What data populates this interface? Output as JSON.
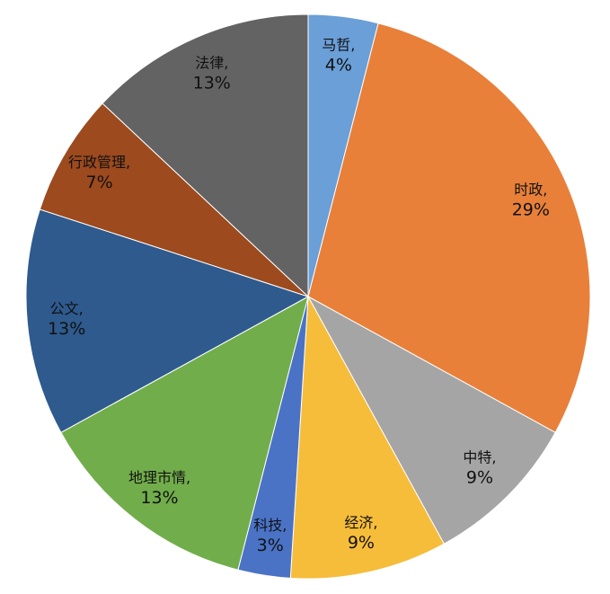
{
  "chart_data": {
    "type": "pie",
    "categories": [
      "马哲,",
      "时政,",
      "中特,",
      "经济,",
      "科技,",
      "地理市情,",
      "公文,",
      "行政管理,",
      "法律,"
    ],
    "values": [
      4,
      29,
      9,
      9,
      3,
      13,
      13,
      7,
      13
    ],
    "value_labels": [
      "4%",
      "29%",
      "9%",
      "9%",
      "3%",
      "13%",
      "13%",
      "7%",
      "13%"
    ],
    "colors": [
      "#6a9fd8",
      "#e8803a",
      "#a5a5a5",
      "#f6bd3a",
      "#4a73c6",
      "#72ad4b",
      "#2e5a8e",
      "#9c4a1e",
      "#636363"
    ]
  }
}
